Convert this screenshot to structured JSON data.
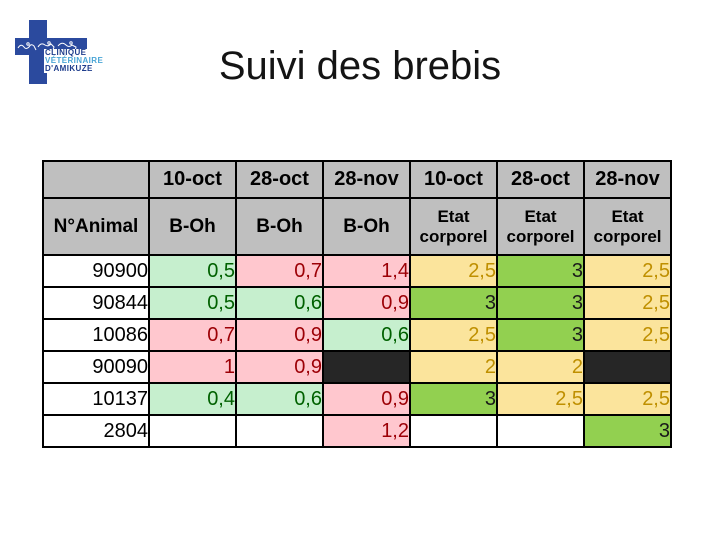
{
  "slide": {
    "title": "Suivi des brebis"
  },
  "logo": {
    "line1": "CLINIQUE",
    "line2": "VÉTÉRINAIRE",
    "line3": "D'AMIKUZE",
    "cross_color": "#2B4A9E",
    "text_dark": "#1E3C8C",
    "text_light": "#4AA5D6"
  },
  "table": {
    "header_row1": [
      "",
      "10-oct",
      "28-oct",
      "28-nov",
      "10-oct",
      "28-oct",
      "28-nov"
    ],
    "header_row2_col0": "N°Animal",
    "header_row2": [
      "B-Oh",
      "B-Oh",
      "B-Oh",
      "Etat corporel",
      "Etat corporel",
      "Etat corporel"
    ],
    "rows": [
      {
        "animal": "90900",
        "cells": [
          {
            "v": "0,5",
            "s": "good"
          },
          {
            "v": "0,7",
            "s": "bad"
          },
          {
            "v": "1,4",
            "s": "bad"
          },
          {
            "v": "2,5",
            "s": "neutral"
          },
          {
            "v": "3",
            "s": "green"
          },
          {
            "v": "2,5",
            "s": "neutral"
          }
        ]
      },
      {
        "animal": "90844",
        "cells": [
          {
            "v": "0,5",
            "s": "good"
          },
          {
            "v": "0,6",
            "s": "good"
          },
          {
            "v": "0,9",
            "s": "bad"
          },
          {
            "v": "3",
            "s": "green"
          },
          {
            "v": "3",
            "s": "green"
          },
          {
            "v": "2,5",
            "s": "neutral"
          }
        ]
      },
      {
        "animal": "10086",
        "cells": [
          {
            "v": "0,7",
            "s": "bad"
          },
          {
            "v": "0,9",
            "s": "bad"
          },
          {
            "v": "0,6",
            "s": "good"
          },
          {
            "v": "2,5",
            "s": "neutral"
          },
          {
            "v": "3",
            "s": "green"
          },
          {
            "v": "2,5",
            "s": "neutral"
          }
        ]
      },
      {
        "animal": "90090",
        "cells": [
          {
            "v": "1",
            "s": "bad"
          },
          {
            "v": "0,9",
            "s": "bad"
          },
          {
            "v": "",
            "s": "black"
          },
          {
            "v": "2",
            "s": "neutral"
          },
          {
            "v": "2",
            "s": "neutral"
          },
          {
            "v": "",
            "s": "black"
          }
        ]
      },
      {
        "animal": "10137",
        "cells": [
          {
            "v": "0,4",
            "s": "good"
          },
          {
            "v": "0,6",
            "s": "good"
          },
          {
            "v": "0,9",
            "s": "bad"
          },
          {
            "v": "3",
            "s": "green"
          },
          {
            "v": "2,5",
            "s": "neutral"
          },
          {
            "v": "2,5",
            "s": "neutral"
          }
        ]
      },
      {
        "animal": "2804",
        "cells": [
          {
            "v": "",
            "s": "empty"
          },
          {
            "v": "",
            "s": "empty"
          },
          {
            "v": "1,2",
            "s": "bad"
          },
          {
            "v": "",
            "s": "empty"
          },
          {
            "v": "",
            "s": "empty"
          },
          {
            "v": "3",
            "s": "green"
          }
        ]
      }
    ],
    "colors": {
      "header_bg": "#BFBFBF",
      "good_bg": "#C6EFCE",
      "good_text": "#006100",
      "bad_bg": "#FFC7CE",
      "bad_text": "#9C0006",
      "neutral_bg": "#FBE49C",
      "neutral_text": "#BF8F00",
      "green_bg": "#92D050",
      "green_text": "#1A1A1A",
      "black_bg": "#262626"
    }
  }
}
